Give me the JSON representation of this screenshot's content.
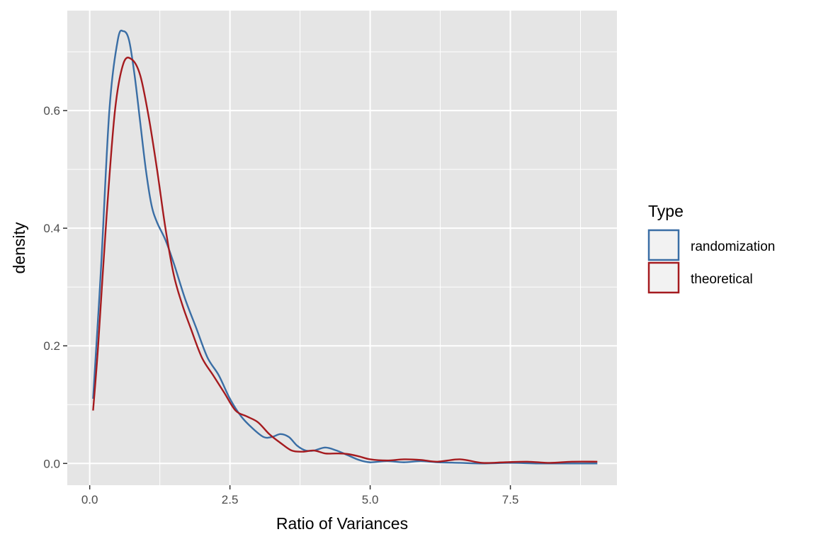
{
  "chart_data": {
    "type": "line",
    "title": "",
    "xlabel": "Ratio of Variances",
    "ylabel": "density",
    "xlim": [
      -0.4,
      9.4
    ],
    "ylim": [
      -0.037,
      0.77
    ],
    "x_ticks": [
      0.0,
      2.5,
      5.0,
      7.5
    ],
    "x_tick_labels": [
      "0.0",
      "2.5",
      "5.0",
      "7.5"
    ],
    "x_minor_ticks": [
      1.25,
      3.75,
      6.25,
      8.75
    ],
    "y_ticks": [
      0.0,
      0.2,
      0.4,
      0.6
    ],
    "y_tick_labels": [
      "0.0",
      "0.2",
      "0.4",
      "0.6"
    ],
    "y_minor_ticks": [
      0.1,
      0.3,
      0.5,
      0.7
    ],
    "grid": true,
    "legend": {
      "title": "Type",
      "position": "right"
    },
    "colors": {
      "panel_bg": "#e5e5e5",
      "grid": "#ffffff",
      "legend_key_bg": "#f2f2f2"
    },
    "series": [
      {
        "name": "randomization",
        "color": "#3a6ea5",
        "points": [
          [
            0.06,
            0.11
          ],
          [
            0.2,
            0.33
          ],
          [
            0.35,
            0.6
          ],
          [
            0.5,
            0.72
          ],
          [
            0.6,
            0.735
          ],
          [
            0.7,
            0.72
          ],
          [
            0.8,
            0.66
          ],
          [
            0.9,
            0.58
          ],
          [
            1.0,
            0.5
          ],
          [
            1.1,
            0.44
          ],
          [
            1.2,
            0.41
          ],
          [
            1.35,
            0.38
          ],
          [
            1.5,
            0.34
          ],
          [
            1.7,
            0.28
          ],
          [
            1.9,
            0.23
          ],
          [
            2.1,
            0.18
          ],
          [
            2.3,
            0.15
          ],
          [
            2.5,
            0.11
          ],
          [
            2.7,
            0.08
          ],
          [
            2.9,
            0.06
          ],
          [
            3.1,
            0.045
          ],
          [
            3.25,
            0.045
          ],
          [
            3.4,
            0.05
          ],
          [
            3.55,
            0.045
          ],
          [
            3.7,
            0.03
          ],
          [
            3.85,
            0.022
          ],
          [
            4.0,
            0.022
          ],
          [
            4.2,
            0.027
          ],
          [
            4.4,
            0.022
          ],
          [
            4.6,
            0.014
          ],
          [
            4.8,
            0.006
          ],
          [
            5.0,
            0.002
          ],
          [
            5.3,
            0.004
          ],
          [
            5.6,
            0.002
          ],
          [
            5.9,
            0.004
          ],
          [
            6.2,
            0.002
          ],
          [
            6.6,
            0.001
          ],
          [
            7.0,
            0.0
          ],
          [
            7.5,
            0.001
          ],
          [
            8.0,
            0.0
          ],
          [
            8.5,
            0.0
          ],
          [
            9.05,
            0.0
          ]
        ]
      },
      {
        "name": "theoretical",
        "color": "#a51b1f",
        "points": [
          [
            0.06,
            0.09
          ],
          [
            0.15,
            0.2
          ],
          [
            0.3,
            0.42
          ],
          [
            0.45,
            0.6
          ],
          [
            0.6,
            0.68
          ],
          [
            0.75,
            0.687
          ],
          [
            0.9,
            0.66
          ],
          [
            1.05,
            0.59
          ],
          [
            1.2,
            0.5
          ],
          [
            1.35,
            0.4
          ],
          [
            1.5,
            0.32
          ],
          [
            1.65,
            0.27
          ],
          [
            1.8,
            0.23
          ],
          [
            2.0,
            0.18
          ],
          [
            2.2,
            0.15
          ],
          [
            2.4,
            0.12
          ],
          [
            2.6,
            0.09
          ],
          [
            2.8,
            0.08
          ],
          [
            3.0,
            0.07
          ],
          [
            3.2,
            0.05
          ],
          [
            3.4,
            0.035
          ],
          [
            3.6,
            0.022
          ],
          [
            3.8,
            0.02
          ],
          [
            4.0,
            0.022
          ],
          [
            4.2,
            0.017
          ],
          [
            4.4,
            0.017
          ],
          [
            4.6,
            0.016
          ],
          [
            4.8,
            0.012
          ],
          [
            5.0,
            0.007
          ],
          [
            5.3,
            0.005
          ],
          [
            5.6,
            0.007
          ],
          [
            5.9,
            0.006
          ],
          [
            6.2,
            0.003
          ],
          [
            6.6,
            0.007
          ],
          [
            7.0,
            0.001
          ],
          [
            7.4,
            0.002
          ],
          [
            7.8,
            0.003
          ],
          [
            8.2,
            0.001
          ],
          [
            8.6,
            0.003
          ],
          [
            9.05,
            0.003
          ]
        ]
      }
    ]
  }
}
